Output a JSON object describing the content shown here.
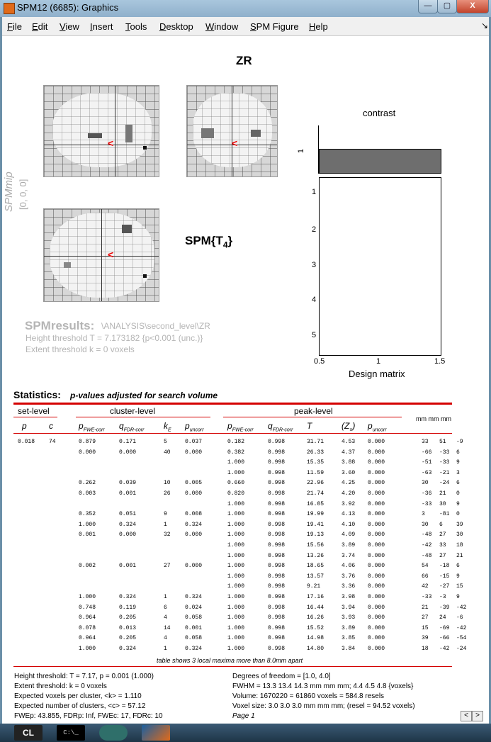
{
  "window": {
    "title": "SPM12 (6685): Graphics",
    "min_label": "—",
    "max_label": "▢",
    "close_label": "X"
  },
  "menu": {
    "items": [
      "File",
      "Edit",
      "View",
      "Insert",
      "Tools",
      "Desktop",
      "Window",
      "SPM Figure",
      "Help"
    ],
    "dock_icon": "↘"
  },
  "figure": {
    "heading": "ZR",
    "spmmip_label": "SPMmip",
    "spmmip_coords": "[0, 0, 0]",
    "spm_t": "SPM{T",
    "spm_t_sub": "4",
    "spm_t_close": "}",
    "contrast_title": "contrast",
    "contrast_tick": "1",
    "design_rows": [
      "1",
      "2",
      "3",
      "4",
      "5"
    ],
    "design_x": [
      "0.5",
      "1",
      "1.5"
    ],
    "design_label": "Design matrix",
    "results_title": "SPMresults:",
    "results_path": "\\ANALYSIS\\second_level\\ZR",
    "height_threshold": "Height threshold T = 7.173182  {p<0.001 (unc.)}",
    "extent_threshold": "Extent threshold k = 0 voxels"
  },
  "stats": {
    "title": "Statistics:",
    "subtitle": "p-values adjusted for search volume",
    "set_level": "set-level",
    "cluster_level": "cluster-level",
    "peak_level": "peak-level",
    "mm_label": "mm mm mm",
    "col_p": "p",
    "col_c": "c",
    "col_pfwe": "p",
    "col_pfwe_sub": "FWE-corr",
    "col_qfdr": "q",
    "col_qfdr_sub": "FDR-corr",
    "col_ke": "k",
    "col_ke_sub": "E",
    "col_punc": "p",
    "col_punc_sub": "uncorr",
    "col_T": "T",
    "col_Z": "(Z",
    "col_Z_sub": "≡",
    "col_Z_close": ")",
    "rows": [
      [
        "0.018",
        "74",
        "0.879",
        "0.171",
        "5",
        "0.037",
        "0.182",
        "0.998",
        "31.71",
        "4.53",
        "0.000",
        "33",
        "51",
        "-9"
      ],
      [
        "",
        "",
        "0.000",
        "0.000",
        "40",
        "0.000",
        "0.382",
        "0.998",
        "26.33",
        "4.37",
        "0.000",
        "-66",
        "-33",
        "6"
      ],
      [
        "",
        "",
        "",
        "",
        "",
        "",
        "1.000",
        "0.998",
        "15.35",
        "3.88",
        "0.000",
        "-51",
        "-33",
        "9"
      ],
      [
        "",
        "",
        "",
        "",
        "",
        "",
        "1.000",
        "0.998",
        "11.59",
        "3.60",
        "0.000",
        "-63",
        "-21",
        "3"
      ],
      [
        "",
        "",
        "0.262",
        "0.039",
        "10",
        "0.005",
        "0.660",
        "0.998",
        "22.96",
        "4.25",
        "0.000",
        "30",
        "-24",
        "6"
      ],
      [
        "",
        "",
        "0.003",
        "0.001",
        "26",
        "0.000",
        "0.820",
        "0.998",
        "21.74",
        "4.20",
        "0.000",
        "-36",
        "21",
        "0"
      ],
      [
        "",
        "",
        "",
        "",
        "",
        "",
        "1.000",
        "0.998",
        "16.05",
        "3.92",
        "0.000",
        "-33",
        "30",
        "9"
      ],
      [
        "",
        "",
        "0.352",
        "0.051",
        "9",
        "0.008",
        "1.000",
        "0.998",
        "19.99",
        "4.13",
        "0.000",
        "3",
        "-81",
        "0"
      ],
      [
        "",
        "",
        "1.000",
        "0.324",
        "1",
        "0.324",
        "1.000",
        "0.998",
        "19.41",
        "4.10",
        "0.000",
        "30",
        "6",
        "39"
      ],
      [
        "",
        "",
        "0.001",
        "0.000",
        "32",
        "0.000",
        "1.000",
        "0.998",
        "19.13",
        "4.09",
        "0.000",
        "-48",
        "27",
        "30"
      ],
      [
        "",
        "",
        "",
        "",
        "",
        "",
        "1.000",
        "0.998",
        "15.56",
        "3.89",
        "0.000",
        "-42",
        "33",
        "18"
      ],
      [
        "",
        "",
        "",
        "",
        "",
        "",
        "1.000",
        "0.998",
        "13.26",
        "3.74",
        "0.000",
        "-48",
        "27",
        "21"
      ],
      [
        "",
        "",
        "0.002",
        "0.001",
        "27",
        "0.000",
        "1.000",
        "0.998",
        "18.65",
        "4.06",
        "0.000",
        "54",
        "-18",
        "6"
      ],
      [
        "",
        "",
        "",
        "",
        "",
        "",
        "1.000",
        "0.998",
        "13.57",
        "3.76",
        "0.000",
        "66",
        "-15",
        "9"
      ],
      [
        "",
        "",
        "",
        "",
        "",
        "",
        "1.000",
        "0.998",
        "9.21",
        "3.36",
        "0.000",
        "42",
        "-27",
        "15"
      ],
      [
        "",
        "",
        "1.000",
        "0.324",
        "1",
        "0.324",
        "1.000",
        "0.998",
        "17.16",
        "3.98",
        "0.000",
        "-33",
        "-3",
        "9"
      ],
      [
        "",
        "",
        "0.748",
        "0.119",
        "6",
        "0.024",
        "1.000",
        "0.998",
        "16.44",
        "3.94",
        "0.000",
        "21",
        "-39",
        "-42"
      ],
      [
        "",
        "",
        "0.964",
        "0.205",
        "4",
        "0.058",
        "1.000",
        "0.998",
        "16.26",
        "3.93",
        "0.000",
        "27",
        "24",
        "-6"
      ],
      [
        "",
        "",
        "0.078",
        "0.013",
        "14",
        "0.001",
        "1.000",
        "0.998",
        "15.52",
        "3.89",
        "0.000",
        "15",
        "-69",
        "-42"
      ],
      [
        "",
        "",
        "0.964",
        "0.205",
        "4",
        "0.058",
        "1.000",
        "0.998",
        "14.98",
        "3.85",
        "0.000",
        "39",
        "-66",
        "-54"
      ],
      [
        "",
        "",
        "1.000",
        "0.324",
        "1",
        "0.324",
        "1.000",
        "0.998",
        "14.80",
        "3.84",
        "0.000",
        "18",
        "-42",
        "-24"
      ]
    ],
    "table_note": "table shows 3 local maxima more than 8.0mm apart"
  },
  "footer": {
    "left": [
      "Height threshold: T = 7.17, p = 0.001 (1.000)",
      "Extent threshold: k = 0 voxels",
      "Expected voxels per cluster, <k> = 1.110",
      "Expected number of clusters, <c> = 57.12",
      "FWEp: 43.855, FDRp: Inf, FWEc: 17, FDRc: 10"
    ],
    "right": [
      "Degrees of freedom = [1.0, 4.0]",
      "FWHM = 13.3 13.4 14.3 mm mm mm; 4.4 4.5 4.8 {voxels}",
      "Volume: 1670220 = 61860 voxels = 584.8 resels",
      "Voxel size: 3.0 3.0 3.0 mm mm mm; (resel = 94.52 voxels)",
      "Page 1"
    ],
    "prev": "<",
    "next": ">"
  },
  "taskbar": {
    "cl_label": "CL",
    "cmd_label": "C:\\_"
  },
  "colors": {
    "accent_red": "#d40000",
    "contrast_bar": "#6e6e6e",
    "titlebar": "#9dbad3"
  }
}
